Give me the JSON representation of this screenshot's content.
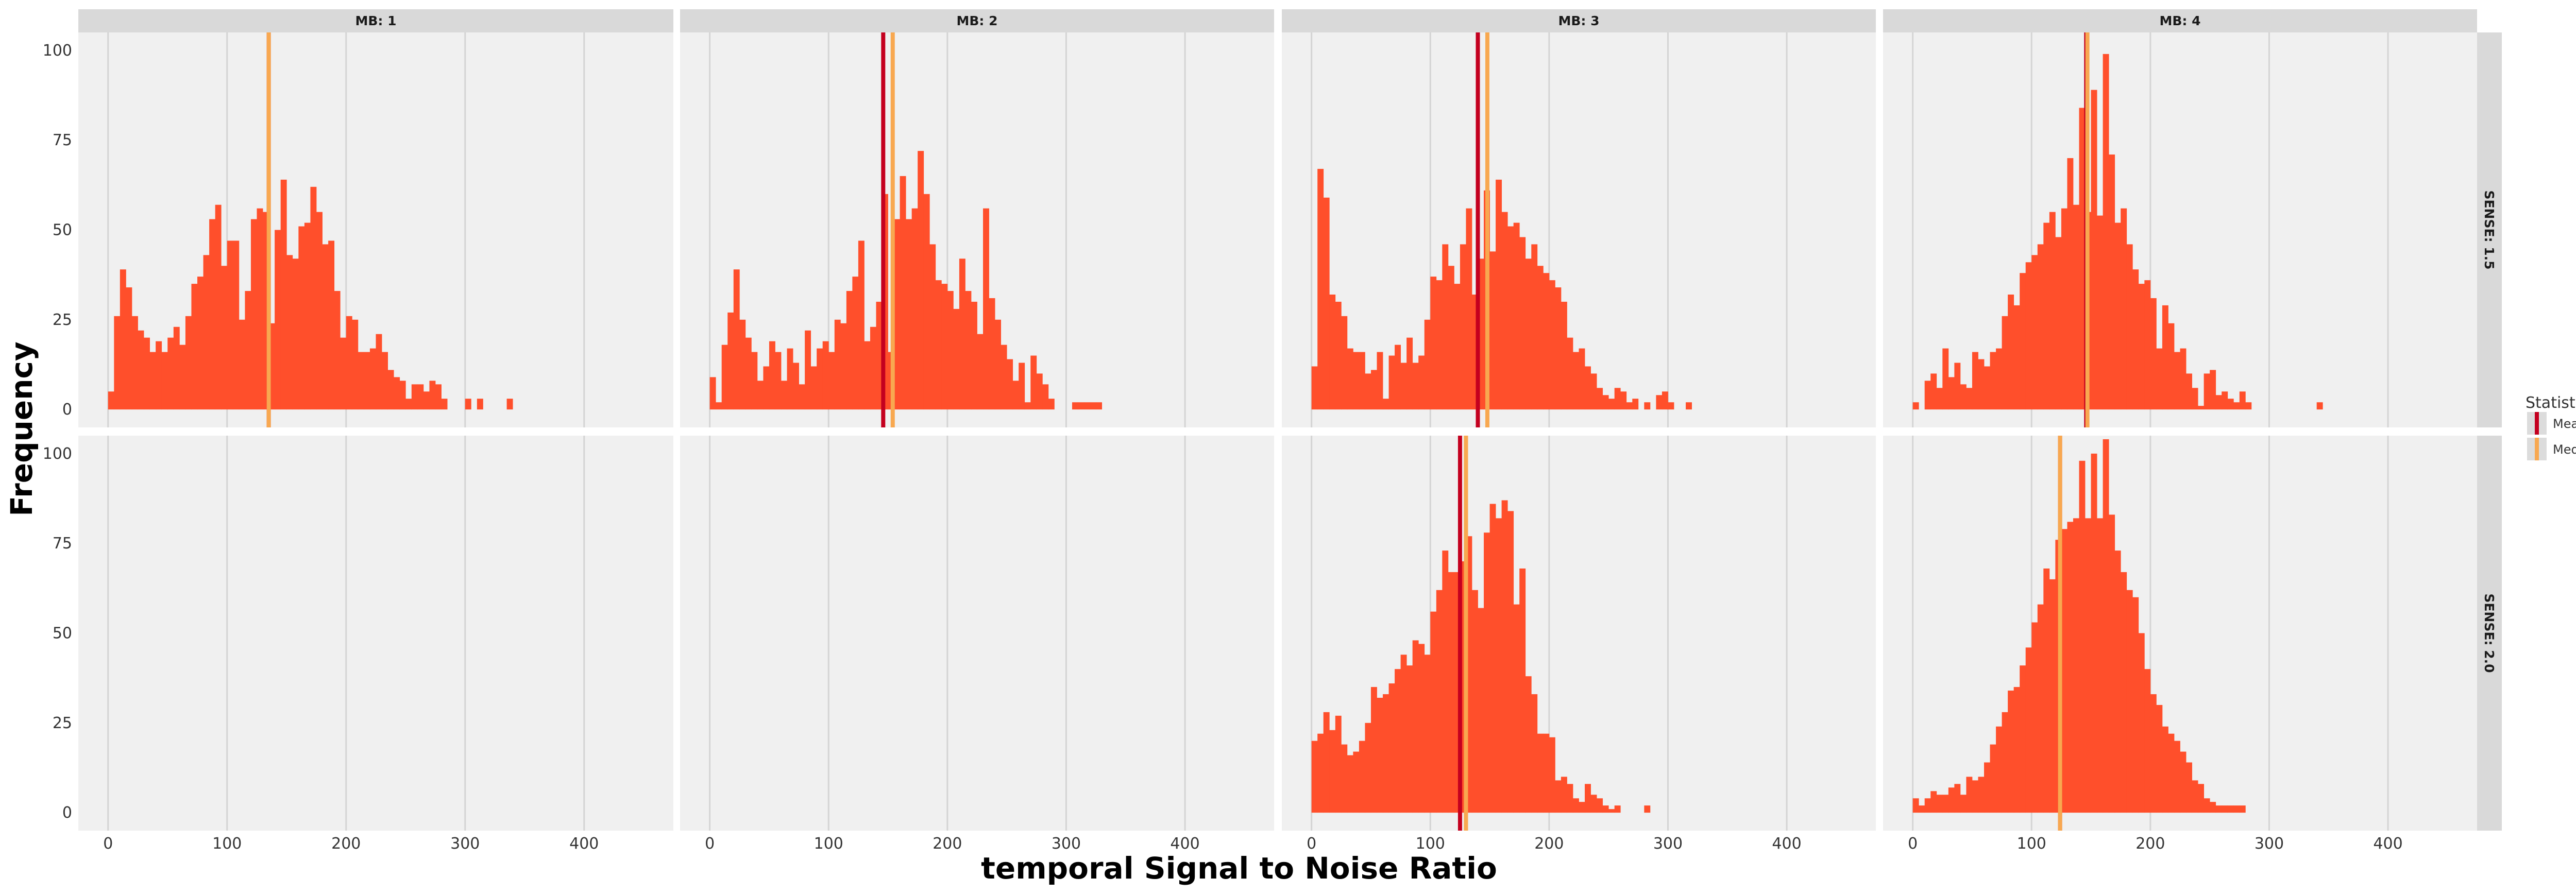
{
  "chart_data": {
    "type": "bar",
    "subtype": "faceted-histogram",
    "xlabel": "temporal Signal to Noise Ratio",
    "ylabel": "Frequency",
    "xlim": [
      -25,
      475
    ],
    "ylim": [
      -5,
      105
    ],
    "xticks": [
      0,
      100,
      200,
      300,
      400
    ],
    "yticks": [
      0,
      25,
      50,
      75,
      100
    ],
    "bin_width": 5,
    "grid": true,
    "background": "#f0f0f0",
    "bar_color": "#ff4f2b",
    "legend": {
      "title": "Statistic",
      "position": "right",
      "entries": [
        {
          "label": "Mean",
          "color": "#c4001f"
        },
        {
          "label": "Median",
          "color": "#f8a850"
        }
      ]
    },
    "columns": [
      "MB: 1",
      "MB: 2",
      "MB: 3",
      "MB: 4"
    ],
    "rows": [
      "SENSE: 1.5",
      "SENSE: 2.0"
    ],
    "panels": [
      {
        "col": 0,
        "row": 0,
        "empty": false,
        "mean": 135,
        "median": 135,
        "bins_start": 0,
        "counts": [
          5,
          26,
          39,
          34,
          26,
          22,
          20,
          16,
          19,
          16,
          20,
          23,
          18,
          26,
          35,
          37,
          43,
          53,
          57,
          40,
          47,
          47,
          25,
          33,
          53,
          56,
          55,
          24,
          50,
          64,
          43,
          42,
          51,
          52,
          62,
          55,
          46,
          47,
          33,
          20,
          26,
          25,
          16,
          16,
          17,
          21,
          16,
          11,
          9,
          8,
          3,
          7,
          7,
          5,
          8,
          7,
          3,
          0,
          0,
          0,
          3,
          0,
          3,
          0,
          0,
          0,
          0,
          3
        ]
      },
      {
        "col": 1,
        "row": 0,
        "empty": false,
        "mean": 146,
        "median": 154,
        "bins_start": 0,
        "counts": [
          9,
          2,
          18,
          27,
          39,
          25,
          20,
          16,
          8,
          12,
          19,
          16,
          8,
          17,
          13,
          7,
          22,
          12,
          17,
          19,
          16,
          25,
          24,
          33,
          37,
          47,
          19,
          23,
          30,
          60,
          16,
          53,
          65,
          53,
          56,
          72,
          60,
          46,
          36,
          35,
          33,
          28,
          42,
          33,
          30,
          21,
          56,
          31,
          25,
          18,
          14,
          8,
          13,
          2,
          15,
          10,
          7,
          3,
          0,
          0,
          0,
          2,
          2,
          2,
          2,
          2
        ]
      },
      {
        "col": 2,
        "row": 0,
        "empty": false,
        "mean": 140,
        "median": 148,
        "bins_start": 0,
        "counts": [
          12,
          67,
          59,
          32,
          30,
          26,
          17,
          16,
          16,
          10,
          11,
          16,
          3,
          15,
          18,
          13,
          20,
          13,
          15,
          25,
          37,
          36,
          46,
          40,
          35,
          46,
          56,
          32,
          42,
          61,
          44,
          64,
          55,
          51,
          52,
          48,
          42,
          46,
          40,
          38,
          36,
          34,
          30,
          20,
          16,
          17,
          12,
          10,
          6,
          4,
          3,
          6,
          5,
          2,
          3,
          0,
          2,
          0,
          4,
          5,
          2,
          0,
          0,
          2
        ]
      },
      {
        "col": 3,
        "row": 0,
        "empty": false,
        "mean": 146,
        "median": 147,
        "bins_start": 0,
        "counts": [
          2,
          0,
          8,
          10,
          6,
          17,
          9,
          13,
          7,
          6,
          16,
          14,
          12,
          16,
          17,
          26,
          32,
          29,
          38,
          41,
          43,
          46,
          52,
          55,
          48,
          56,
          70,
          57,
          84,
          55,
          89,
          54,
          99,
          71,
          52,
          56,
          46,
          39,
          35,
          36,
          31,
          17,
          29,
          24,
          16,
          17,
          10,
          6,
          1,
          10,
          11,
          4,
          5,
          3,
          2,
          5,
          2,
          0,
          0,
          0,
          0,
          0,
          0,
          0,
          0,
          0,
          0,
          0,
          2
        ]
      },
      {
        "col": 0,
        "row": 1,
        "empty": true,
        "counts": []
      },
      {
        "col": 1,
        "row": 1,
        "empty": true,
        "counts": []
      },
      {
        "col": 2,
        "row": 1,
        "empty": false,
        "mean": 125,
        "median": 130,
        "bins_start": 0,
        "counts": [
          20,
          22,
          28,
          23,
          27,
          19,
          16,
          17,
          20,
          25,
          35,
          32,
          33,
          36,
          40,
          44,
          41,
          48,
          47,
          44,
          56,
          62,
          73,
          67,
          67,
          70,
          77,
          62,
          57,
          78,
          86,
          82,
          87,
          84,
          58,
          68,
          38,
          33,
          22,
          22,
          21,
          9,
          10,
          8,
          4,
          3,
          8,
          5,
          4,
          2,
          1,
          2,
          0,
          0,
          0,
          0,
          2
        ]
      },
      {
        "col": 3,
        "row": 1,
        "empty": false,
        "mean": 124,
        "median": 124,
        "bins_start": 0,
        "counts": [
          4,
          2,
          4,
          6,
          5,
          5,
          7,
          8,
          5,
          10,
          9,
          10,
          14,
          19,
          24,
          28,
          34,
          35,
          41,
          46,
          53,
          58,
          68,
          65,
          76,
          79,
          81,
          82,
          98,
          82,
          100,
          82,
          104,
          83,
          73,
          67,
          62,
          60,
          50,
          40,
          33,
          30,
          24,
          22,
          20,
          17,
          14,
          9,
          8,
          4,
          3,
          2,
          2,
          2,
          2,
          2,
          0,
          0,
          0,
          0,
          0,
          0,
          0
        ]
      }
    ]
  }
}
